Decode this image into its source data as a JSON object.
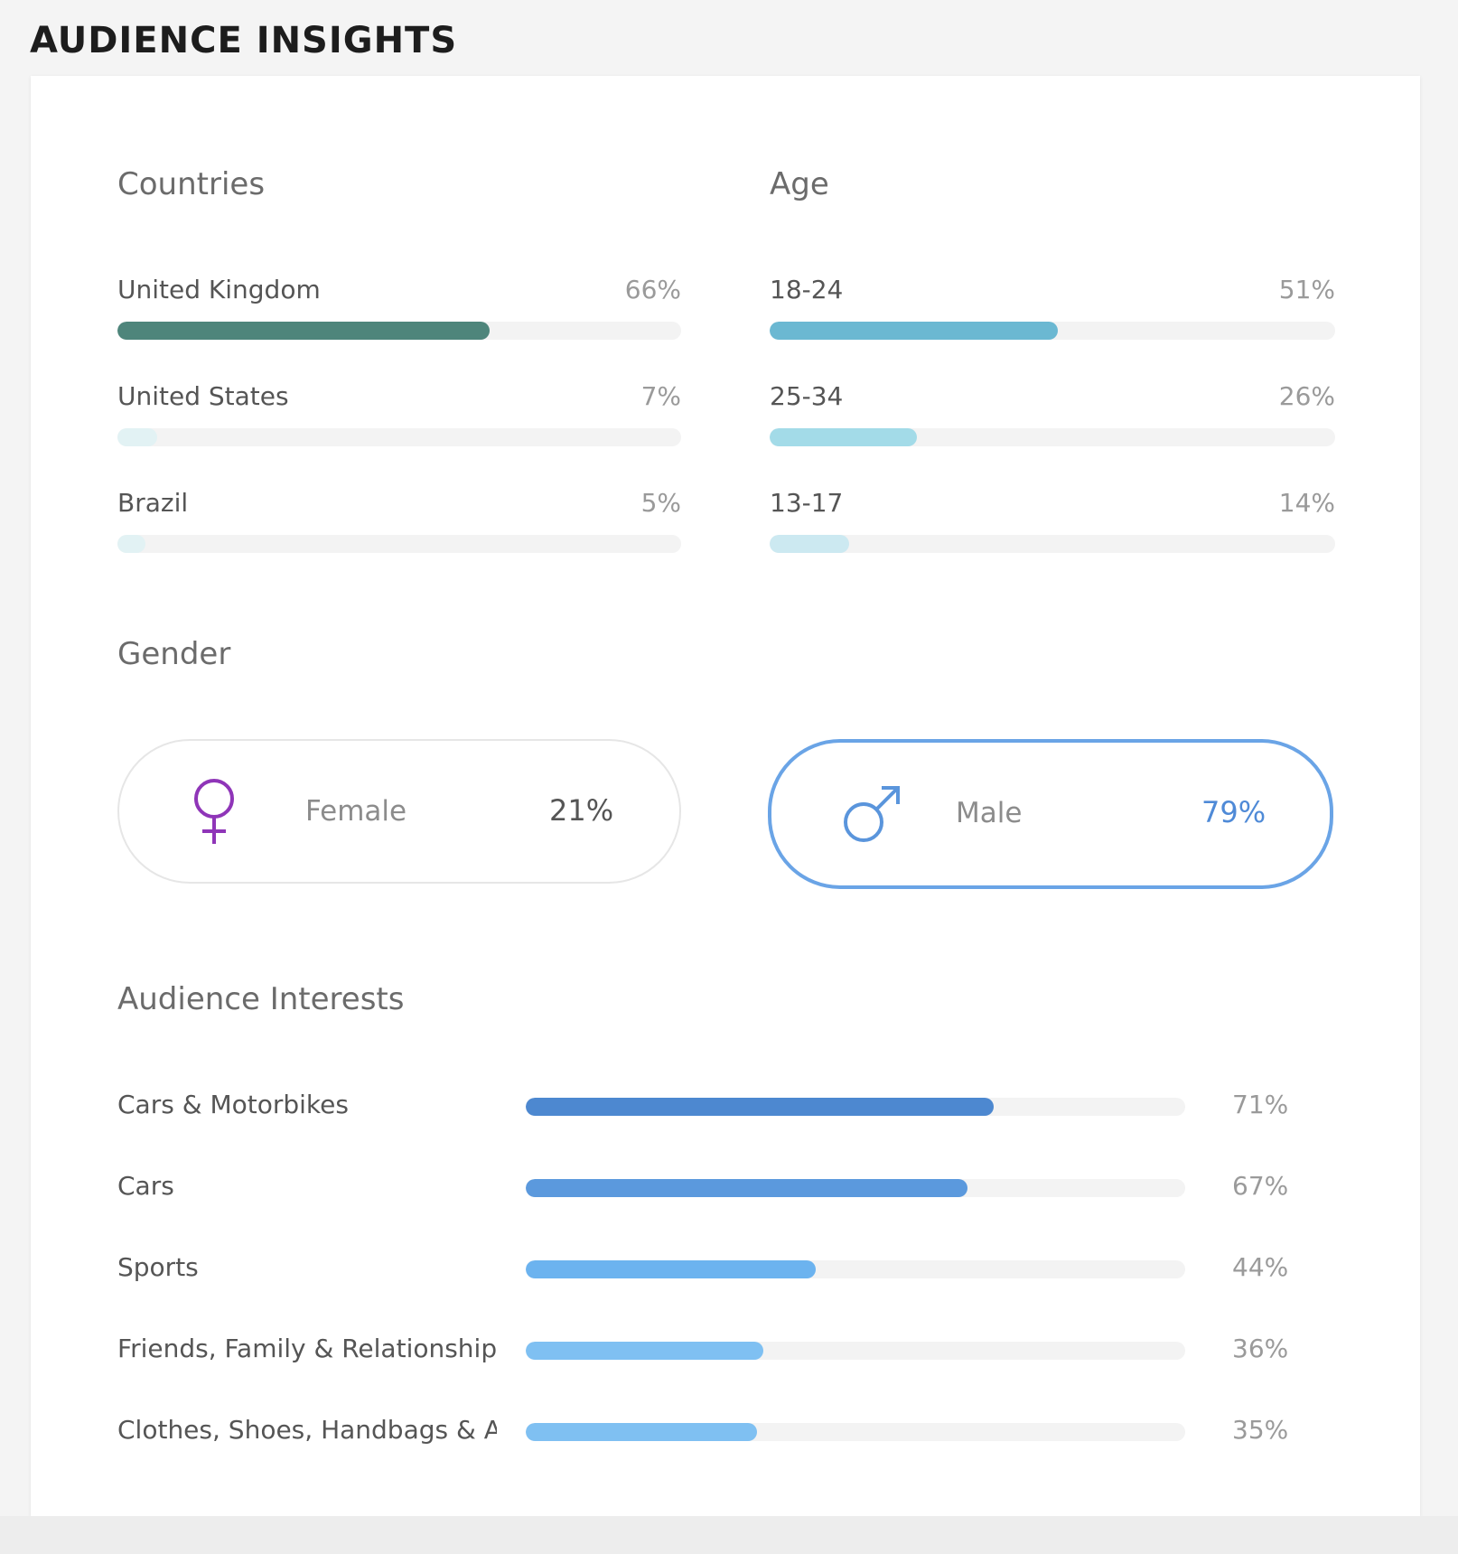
{
  "page": {
    "title": "AUDIENCE INSIGHTS"
  },
  "countries": {
    "title": "Countries",
    "items": [
      {
        "label": "United Kingdom",
        "value": "66%",
        "fraction": 0.66,
        "color": "#4e857b"
      },
      {
        "label": "United States",
        "value": "7%",
        "fraction": 0.07,
        "color": "#e2f2f4"
      },
      {
        "label": "Brazil",
        "value": "5%",
        "fraction": 0.05,
        "color": "#e2f2f4"
      }
    ]
  },
  "age": {
    "title": "Age",
    "items": [
      {
        "label": "18-24",
        "value": "51%",
        "fraction": 0.51,
        "color": "#6bb8d2"
      },
      {
        "label": "25-34",
        "value": "26%",
        "fraction": 0.26,
        "color": "#a3dbe8"
      },
      {
        "label": "13-17",
        "value": "14%",
        "fraction": 0.14,
        "color": "#cce9f1"
      }
    ]
  },
  "gender": {
    "title": "Gender",
    "female": {
      "label": "Female",
      "value": "21%",
      "icon": "female-symbol-icon",
      "color": "#8f35b8",
      "value_color": "#555555"
    },
    "male": {
      "label": "Male",
      "value": "79%",
      "icon": "male-symbol-icon",
      "color": "#5a95dc",
      "value_color": "#4f8ad7"
    }
  },
  "interests": {
    "title": "Audience Interests",
    "items": [
      {
        "label": "Cars & Motorbikes",
        "value": "71%",
        "fraction": 0.71,
        "color": "#4d88d0"
      },
      {
        "label": "Cars",
        "value": "67%",
        "fraction": 0.67,
        "color": "#5b99dd"
      },
      {
        "label": "Sports",
        "value": "44%",
        "fraction": 0.44,
        "color": "#6cb3ef"
      },
      {
        "label": "Friends, Family & Relationships",
        "value": "36%",
        "fraction": 0.36,
        "color": "#7fc0f2"
      },
      {
        "label": "Clothes, Shoes, Handbags & A...",
        "value": "35%",
        "fraction": 0.35,
        "color": "#7fc0f2"
      }
    ]
  }
}
